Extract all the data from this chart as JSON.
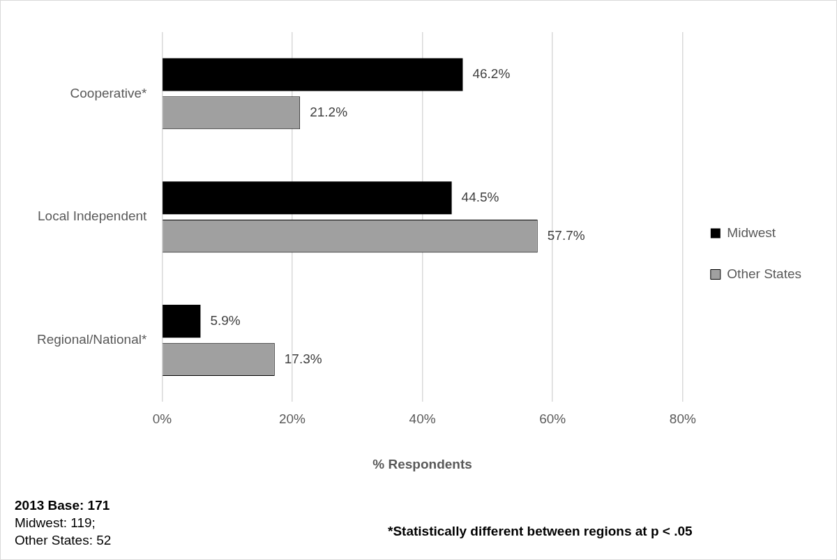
{
  "chart_data": {
    "type": "bar",
    "orientation": "horizontal",
    "xlabel": "% Respondents",
    "categories": [
      "Cooperative*",
      "Local Independent",
      "Regional/National*"
    ],
    "series": [
      {
        "name": "Midwest",
        "color": "#000000",
        "values": [
          46.2,
          44.5,
          5.9
        ],
        "value_labels": [
          "46.2%",
          "44.5%",
          "5.9%"
        ]
      },
      {
        "name": "Other States",
        "color": "#a0a0a0",
        "values": [
          21.2,
          57.7,
          17.3
        ],
        "value_labels": [
          "21.2%",
          "57.7%",
          "17.3%"
        ]
      }
    ],
    "xlim": [
      0,
      80
    ],
    "xticks": [
      {
        "value": 0,
        "label": "0%"
      },
      {
        "value": 20,
        "label": "20%"
      },
      {
        "value": 40,
        "label": "40%"
      },
      {
        "value": 60,
        "label": "60%"
      },
      {
        "value": 80,
        "label": "80%"
      }
    ],
    "grid": "x",
    "legend": "right",
    "annotations": [
      "2013 Base: 171",
      "Midwest: 119;",
      "Other States: 52",
      "*Statistically different between regions at p < .05"
    ]
  }
}
